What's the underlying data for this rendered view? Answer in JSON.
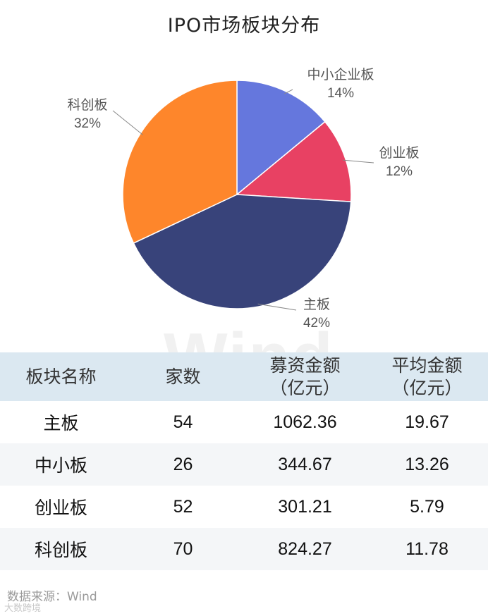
{
  "title": "IPO市场板块分布",
  "chart_data": {
    "type": "pie",
    "title": "IPO市场板块分布",
    "slices": [
      {
        "label": "中小企业板",
        "value": 14,
        "display": "14%",
        "color": "#6577dd"
      },
      {
        "label": "创业板",
        "value": 12,
        "display": "12%",
        "color": "#e84163"
      },
      {
        "label": "主板",
        "value": 42,
        "display": "42%",
        "color": "#38437a"
      },
      {
        "label": "科创板",
        "value": 32,
        "display": "32%",
        "color": "#fe862b"
      }
    ],
    "start_angle": "12 o'clock",
    "direction": "clockwise"
  },
  "table": {
    "headers": [
      "板块名称",
      "家数",
      "募资金额\n（亿元）",
      "平均金额\n（亿元）"
    ],
    "rows": [
      [
        "主板",
        "54",
        "1062.36",
        "19.67"
      ],
      [
        "中小板",
        "26",
        "344.67",
        "13.26"
      ],
      [
        "创业板",
        "52",
        "301.21",
        "5.79"
      ],
      [
        "科创板",
        "70",
        "824.27",
        "11.78"
      ]
    ]
  },
  "watermark": "Wind",
  "source": "数据来源：Wind",
  "logo_text": "大数跨境"
}
